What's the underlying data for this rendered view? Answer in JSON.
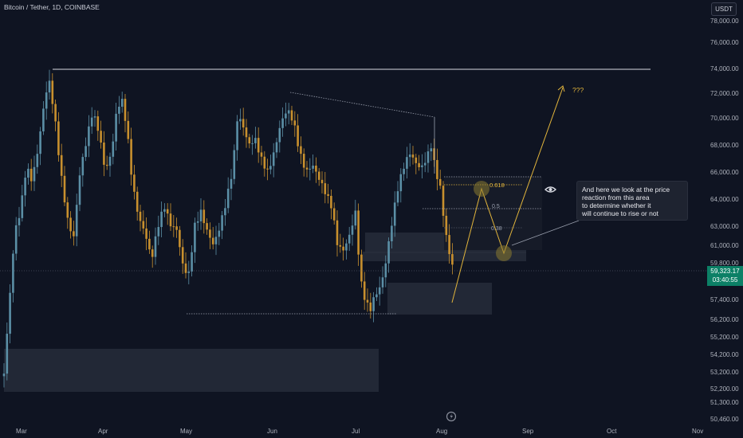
{
  "header": {
    "symbol_title": "Bitcoin / Tether, 1D, COINBASE",
    "currency_button": "USDT"
  },
  "price_axis": {
    "labels": [
      "78,000.00",
      "76,000.00",
      "74,000.00",
      "72,000.00",
      "70,000.00",
      "68,000.00",
      "66,000.00",
      "64,000.00",
      "63,000.00",
      "61,000.00",
      "59,800.00",
      "58,600.00",
      "57,400.00",
      "56,200.00",
      "55,200.00",
      "54,200.00",
      "53,200.00",
      "52,200.00",
      "51,300.00",
      "50,460.00"
    ],
    "current_price": "59,323.17",
    "countdown": "03:40:55"
  },
  "time_axis": {
    "labels": [
      "Mar",
      "Apr",
      "May",
      "Jun",
      "Jul",
      "Aug",
      "Sep",
      "Oct",
      "Nov"
    ]
  },
  "annotations": {
    "fib_618": "0.618",
    "fib_5": "0.5",
    "fib_38": "0.38",
    "question": "???",
    "callout_lines": [
      "And here we look at the price",
      "reaction from this area",
      "to determine whether it",
      "will continue to rise or not"
    ]
  },
  "colors": {
    "background": "#0f1422",
    "up_candle": "#5b8fa6",
    "down_candle": "#c8902e",
    "projection": "#e2b53c",
    "price_tag": "#0c8066",
    "zone": "#2a2f3e"
  },
  "icons": {
    "eye": "eye-icon",
    "replay": "replay-icon"
  }
}
